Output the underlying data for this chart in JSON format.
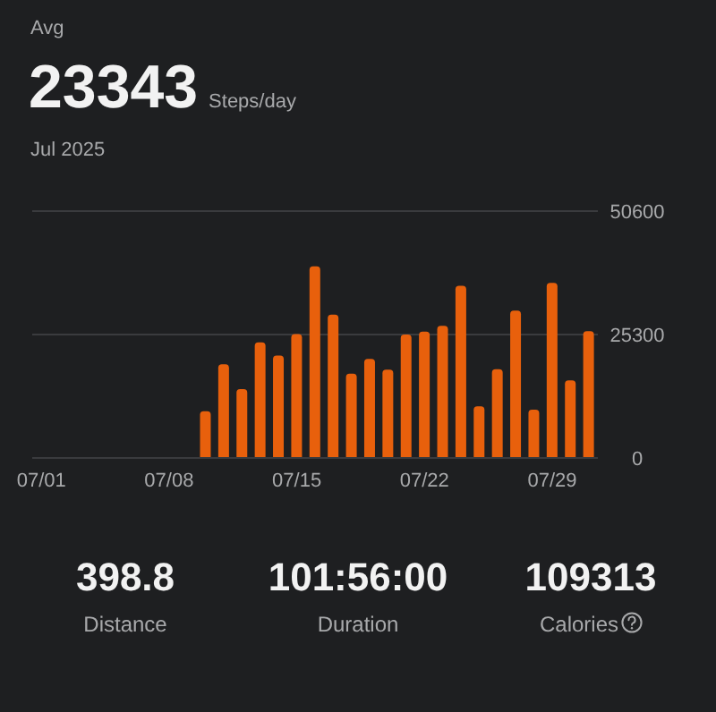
{
  "chart_data": {
    "type": "bar",
    "title": "Avg",
    "subtitle": "Jul 2025",
    "annotations": [
      "23343",
      "Steps/day",
      "398.8",
      "Distance",
      "101:56:00",
      "Duration",
      "109313",
      "Calories"
    ],
    "categories": [
      "07/01",
      null,
      null,
      null,
      null,
      null,
      null,
      "07/08",
      null,
      null,
      null,
      null,
      null,
      null,
      "07/15",
      null,
      null,
      null,
      null,
      null,
      null,
      "07/22",
      null,
      null,
      null,
      null,
      null,
      null,
      "07/29",
      null,
      null
    ],
    "values": [
      0,
      0,
      0,
      0,
      0,
      0,
      0,
      0,
      0,
      9600,
      19200,
      14100,
      23700,
      21000,
      25400,
      39300,
      29400,
      17300,
      20300,
      18100,
      25300,
      25900,
      27100,
      35300,
      10600,
      18200,
      30200,
      9900,
      35900,
      15900,
      26000
    ],
    "color": "#e8600c",
    "ylim": [
      0,
      50600
    ],
    "yticks": [
      0,
      25300,
      50600
    ],
    "grid": "y"
  }
}
